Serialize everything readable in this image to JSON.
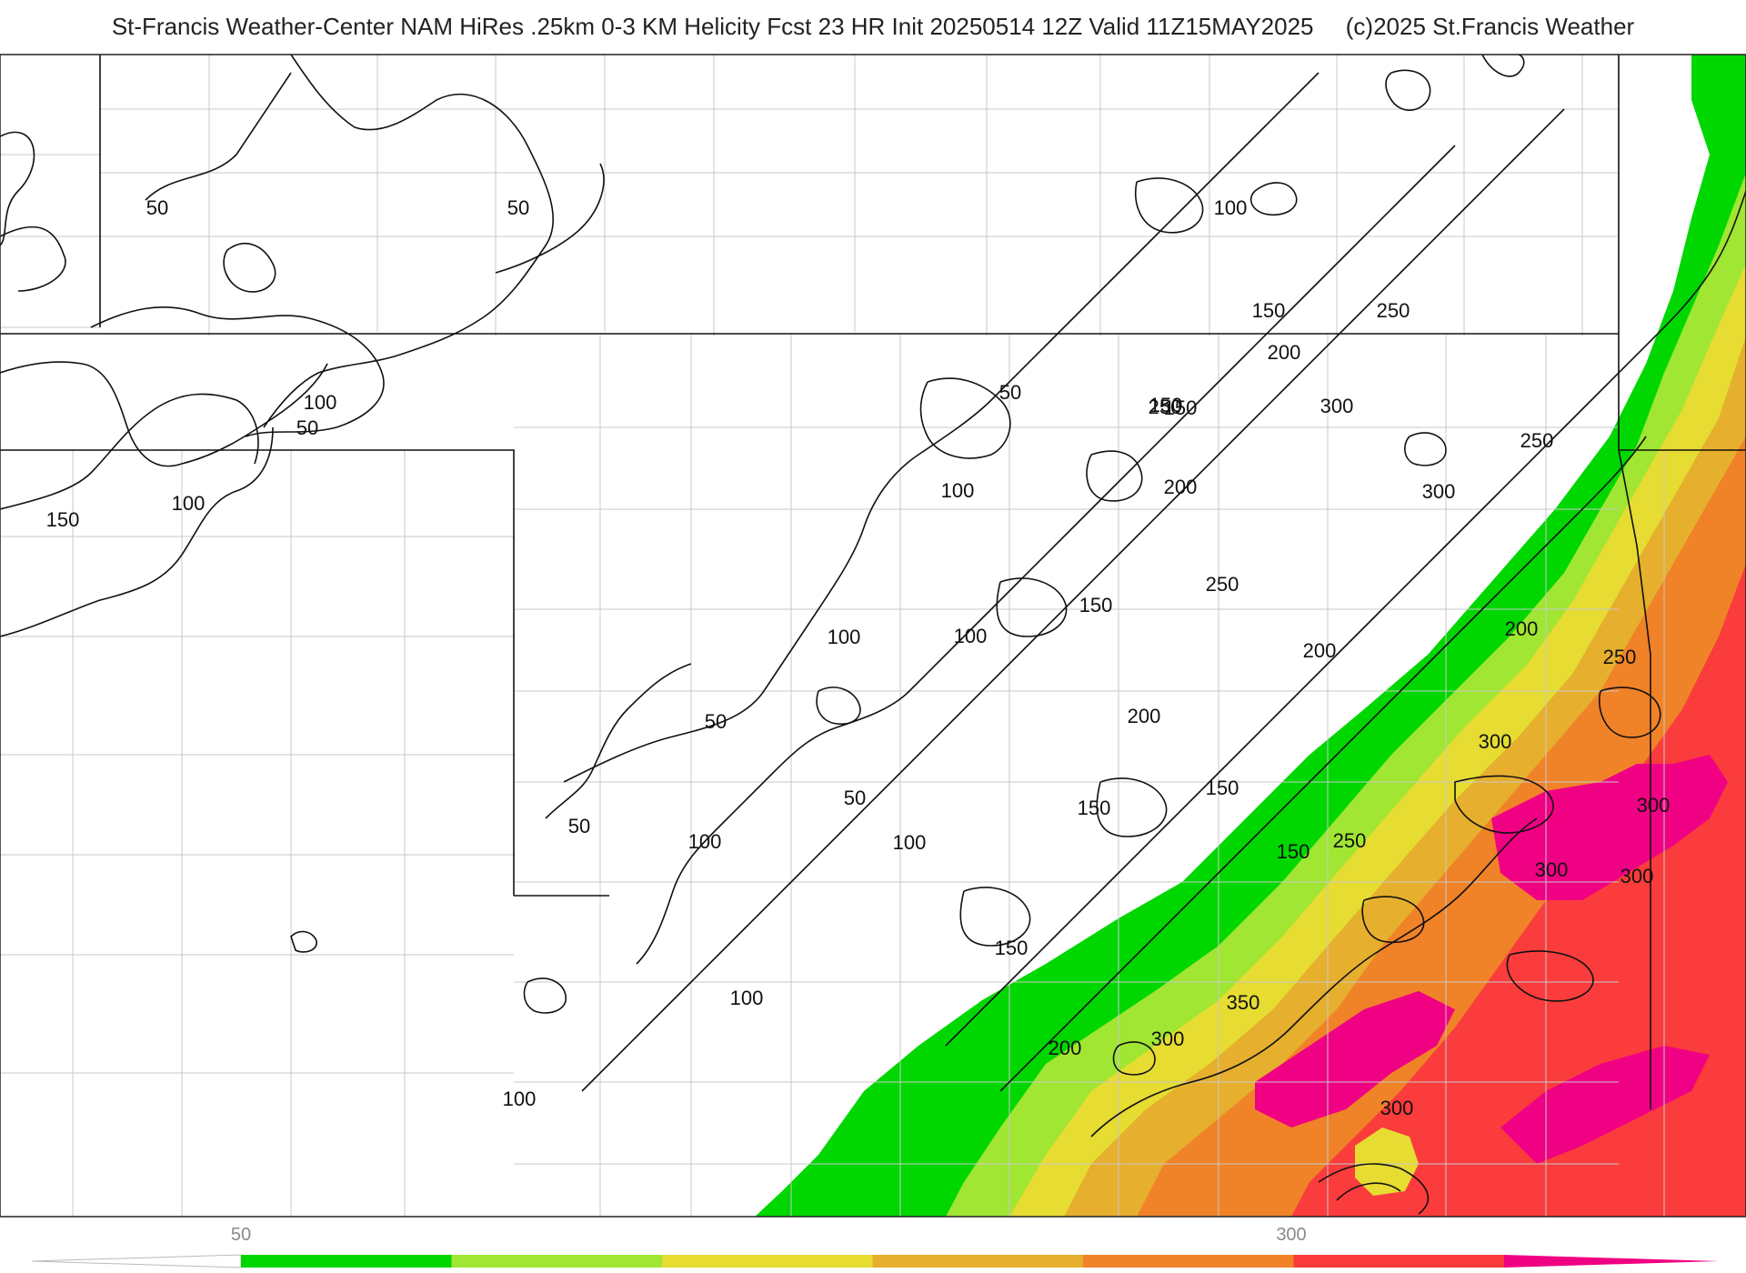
{
  "header": {
    "title": "St-Francis Weather-Center NAM HiRes .25km 0-3 KM Helicity Fcst 23 HR Init 20250514 12Z  Valid 11Z15MAY2025",
    "copyright": "(c)2025 St.Francis Weather"
  },
  "map": {
    "contour_labels": [
      "50",
      "50",
      "100",
      "50",
      "150",
      "100",
      "100",
      "150",
      "250",
      "200",
      "150",
      "250",
      "50",
      "150",
      "300",
      "250",
      "100",
      "200",
      "300",
      "250",
      "150",
      "100",
      "100",
      "200",
      "200",
      "250",
      "50",
      "50",
      "200",
      "150",
      "50",
      "100",
      "100",
      "300",
      "150",
      "150",
      "250",
      "300",
      "300",
      "300",
      "150",
      "200",
      "350",
      "300",
      "100",
      "100",
      "300"
    ]
  },
  "colorbar": {
    "tick_labels": [
      "50",
      "300"
    ],
    "colors": [
      "#ffffff",
      "#00d700",
      "#a0e632",
      "#e6dc32",
      "#e6af2d",
      "#f08228",
      "#fa3c3c",
      "#f00082"
    ]
  }
}
